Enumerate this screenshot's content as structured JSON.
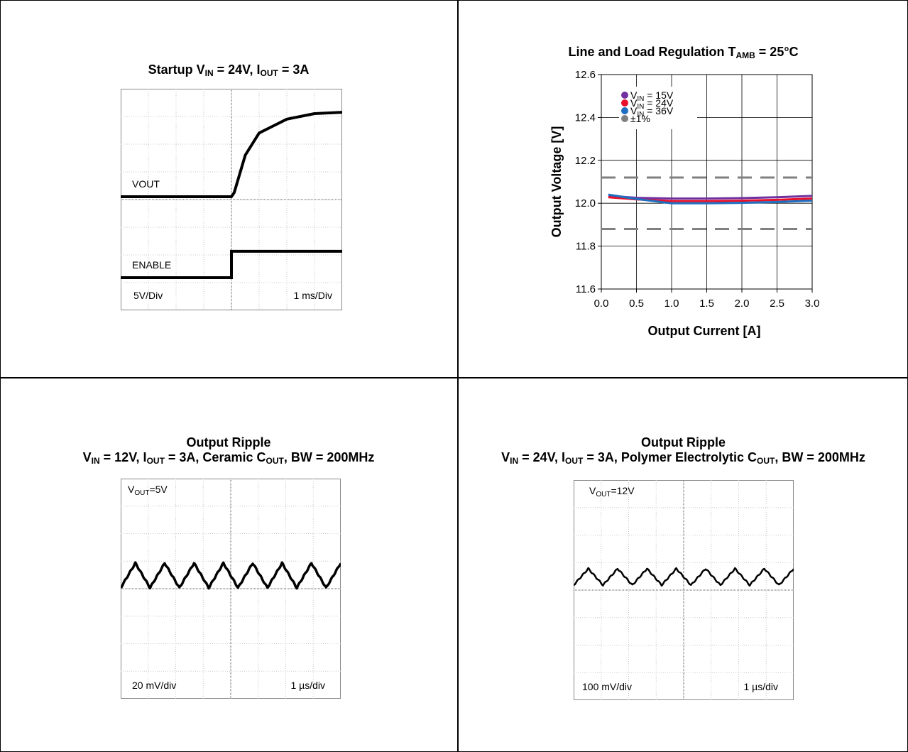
{
  "panels": {
    "startup": {
      "title_parts": {
        "a": "Startup V",
        "a_sub": "IN",
        "b": " = 24V, I",
        "b_sub": "OUT",
        "c": " = 3A"
      },
      "trace_label_top": "VOUT",
      "trace_label_bottom": "ENABLE",
      "scale_left": "5V/Div",
      "scale_right": "1 ms/Div"
    },
    "regulation": {
      "title_parts": {
        "a": "Line and Load Regulation T",
        "a_sub": "AMB",
        "b": " = 25°C"
      },
      "legend": [
        {
          "pre": "V",
          "sub": "IN",
          "post": " = 15V",
          "color": "#7030a0"
        },
        {
          "pre": "V",
          "sub": "IN",
          "post": " = 24V",
          "color": "#e8102a"
        },
        {
          "pre": "V",
          "sub": "IN",
          "post": " = 36V",
          "color": "#1f6fc0"
        },
        {
          "pre": "",
          "sub": "",
          "post": "±1%",
          "color": "#808080"
        }
      ]
    },
    "ripple_ceramic": {
      "title_line1": "Output Ripple",
      "title_parts": {
        "a": "V",
        "a_sub": "IN",
        "b": " = 12V, I",
        "b_sub": "OUT",
        "c": " = 3A, Ceramic C",
        "c_sub": "OUT",
        "d": ", BW = 200MHz"
      },
      "vout_label": {
        "pre": "V",
        "sub": "OUT",
        "post": "=5V"
      },
      "scale_left": "20 mV/div",
      "scale_right": "1 µs/div"
    },
    "ripple_polymer": {
      "title_line1": "Output Ripple",
      "title_parts": {
        "a": "V",
        "a_sub": "IN",
        "b": " = 24V, I",
        "b_sub": "OUT",
        "c": " = 3A, Polymer Electrolytic C",
        "c_sub": "OUT",
        "d": ", BW = 200MHz"
      },
      "vout_label": {
        "pre": "V",
        "sub": "OUT",
        "post": "=12V"
      },
      "scale_left": "100 mV/div",
      "scale_right": "1 µs/div"
    }
  },
  "chart_data": [
    {
      "type": "line",
      "title": "Startup VIN = 24V, IOUT = 3A",
      "series": [
        {
          "name": "VOUT",
          "x_div": [
            0,
            4,
            4.1,
            4.5,
            5,
            6,
            7,
            8
          ],
          "y_div": [
            0,
            0,
            0.15,
            1.5,
            2.3,
            2.8,
            3.0,
            3.05
          ]
        },
        {
          "name": "ENABLE",
          "x_div": [
            0,
            4,
            4,
            8
          ],
          "y_div": [
            0,
            0,
            1,
            1
          ]
        }
      ]
    },
    {
      "type": "line",
      "title": "Line and Load Regulation TAMB = 25°C",
      "xlabel": "Output Current [A]",
      "ylabel": "Output Voltage  [V]",
      "xlim": [
        0.0,
        3.0
      ],
      "ylim": [
        11.6,
        12.6
      ],
      "xticks": [
        "0.0",
        "0.5",
        "1.0",
        "1.5",
        "2.0",
        "2.5",
        "3.0"
      ],
      "yticks": [
        "11.6",
        "11.8",
        "12.0",
        "12.2",
        "12.4",
        "12.6"
      ],
      "grid": true,
      "legend_position": "top-left",
      "x": [
        0.1,
        0.5,
        1.0,
        1.5,
        2.0,
        2.5,
        3.0
      ],
      "series": [
        {
          "name": "VIN = 15V",
          "color": "#7030a0",
          "values": [
            12.035,
            12.025,
            12.022,
            12.022,
            12.024,
            12.028,
            12.034
          ]
        },
        {
          "name": "VIN = 24V",
          "color": "#e8102a",
          "values": [
            12.028,
            12.018,
            12.01,
            12.01,
            12.012,
            12.016,
            12.022
          ]
        },
        {
          "name": "VIN = 36V",
          "color": "#1f6fc0",
          "values": [
            12.04,
            12.02,
            12.0,
            12.0,
            12.002,
            12.006,
            12.012
          ]
        },
        {
          "name": "±1%",
          "color": "#808080",
          "dashed": true,
          "values_upper": 12.12,
          "values_lower": 11.88
        }
      ]
    },
    {
      "type": "line",
      "title": "Output Ripple VIN = 12V, IOUT = 3A, Ceramic COUT, BW = 200MHz",
      "series": [
        {
          "name": "",
          "periods": 7.5,
          "amplitude_div": 0.45
        }
      ]
    },
    {
      "type": "line",
      "title": "Output Ripple VIN = 24V, IOUT = 3A, Polymer Electrolytic COUT, BW = 200MHz",
      "series": [
        {
          "name": "",
          "periods": 7.5,
          "amplitude_div": 0.3
        }
      ]
    }
  ]
}
